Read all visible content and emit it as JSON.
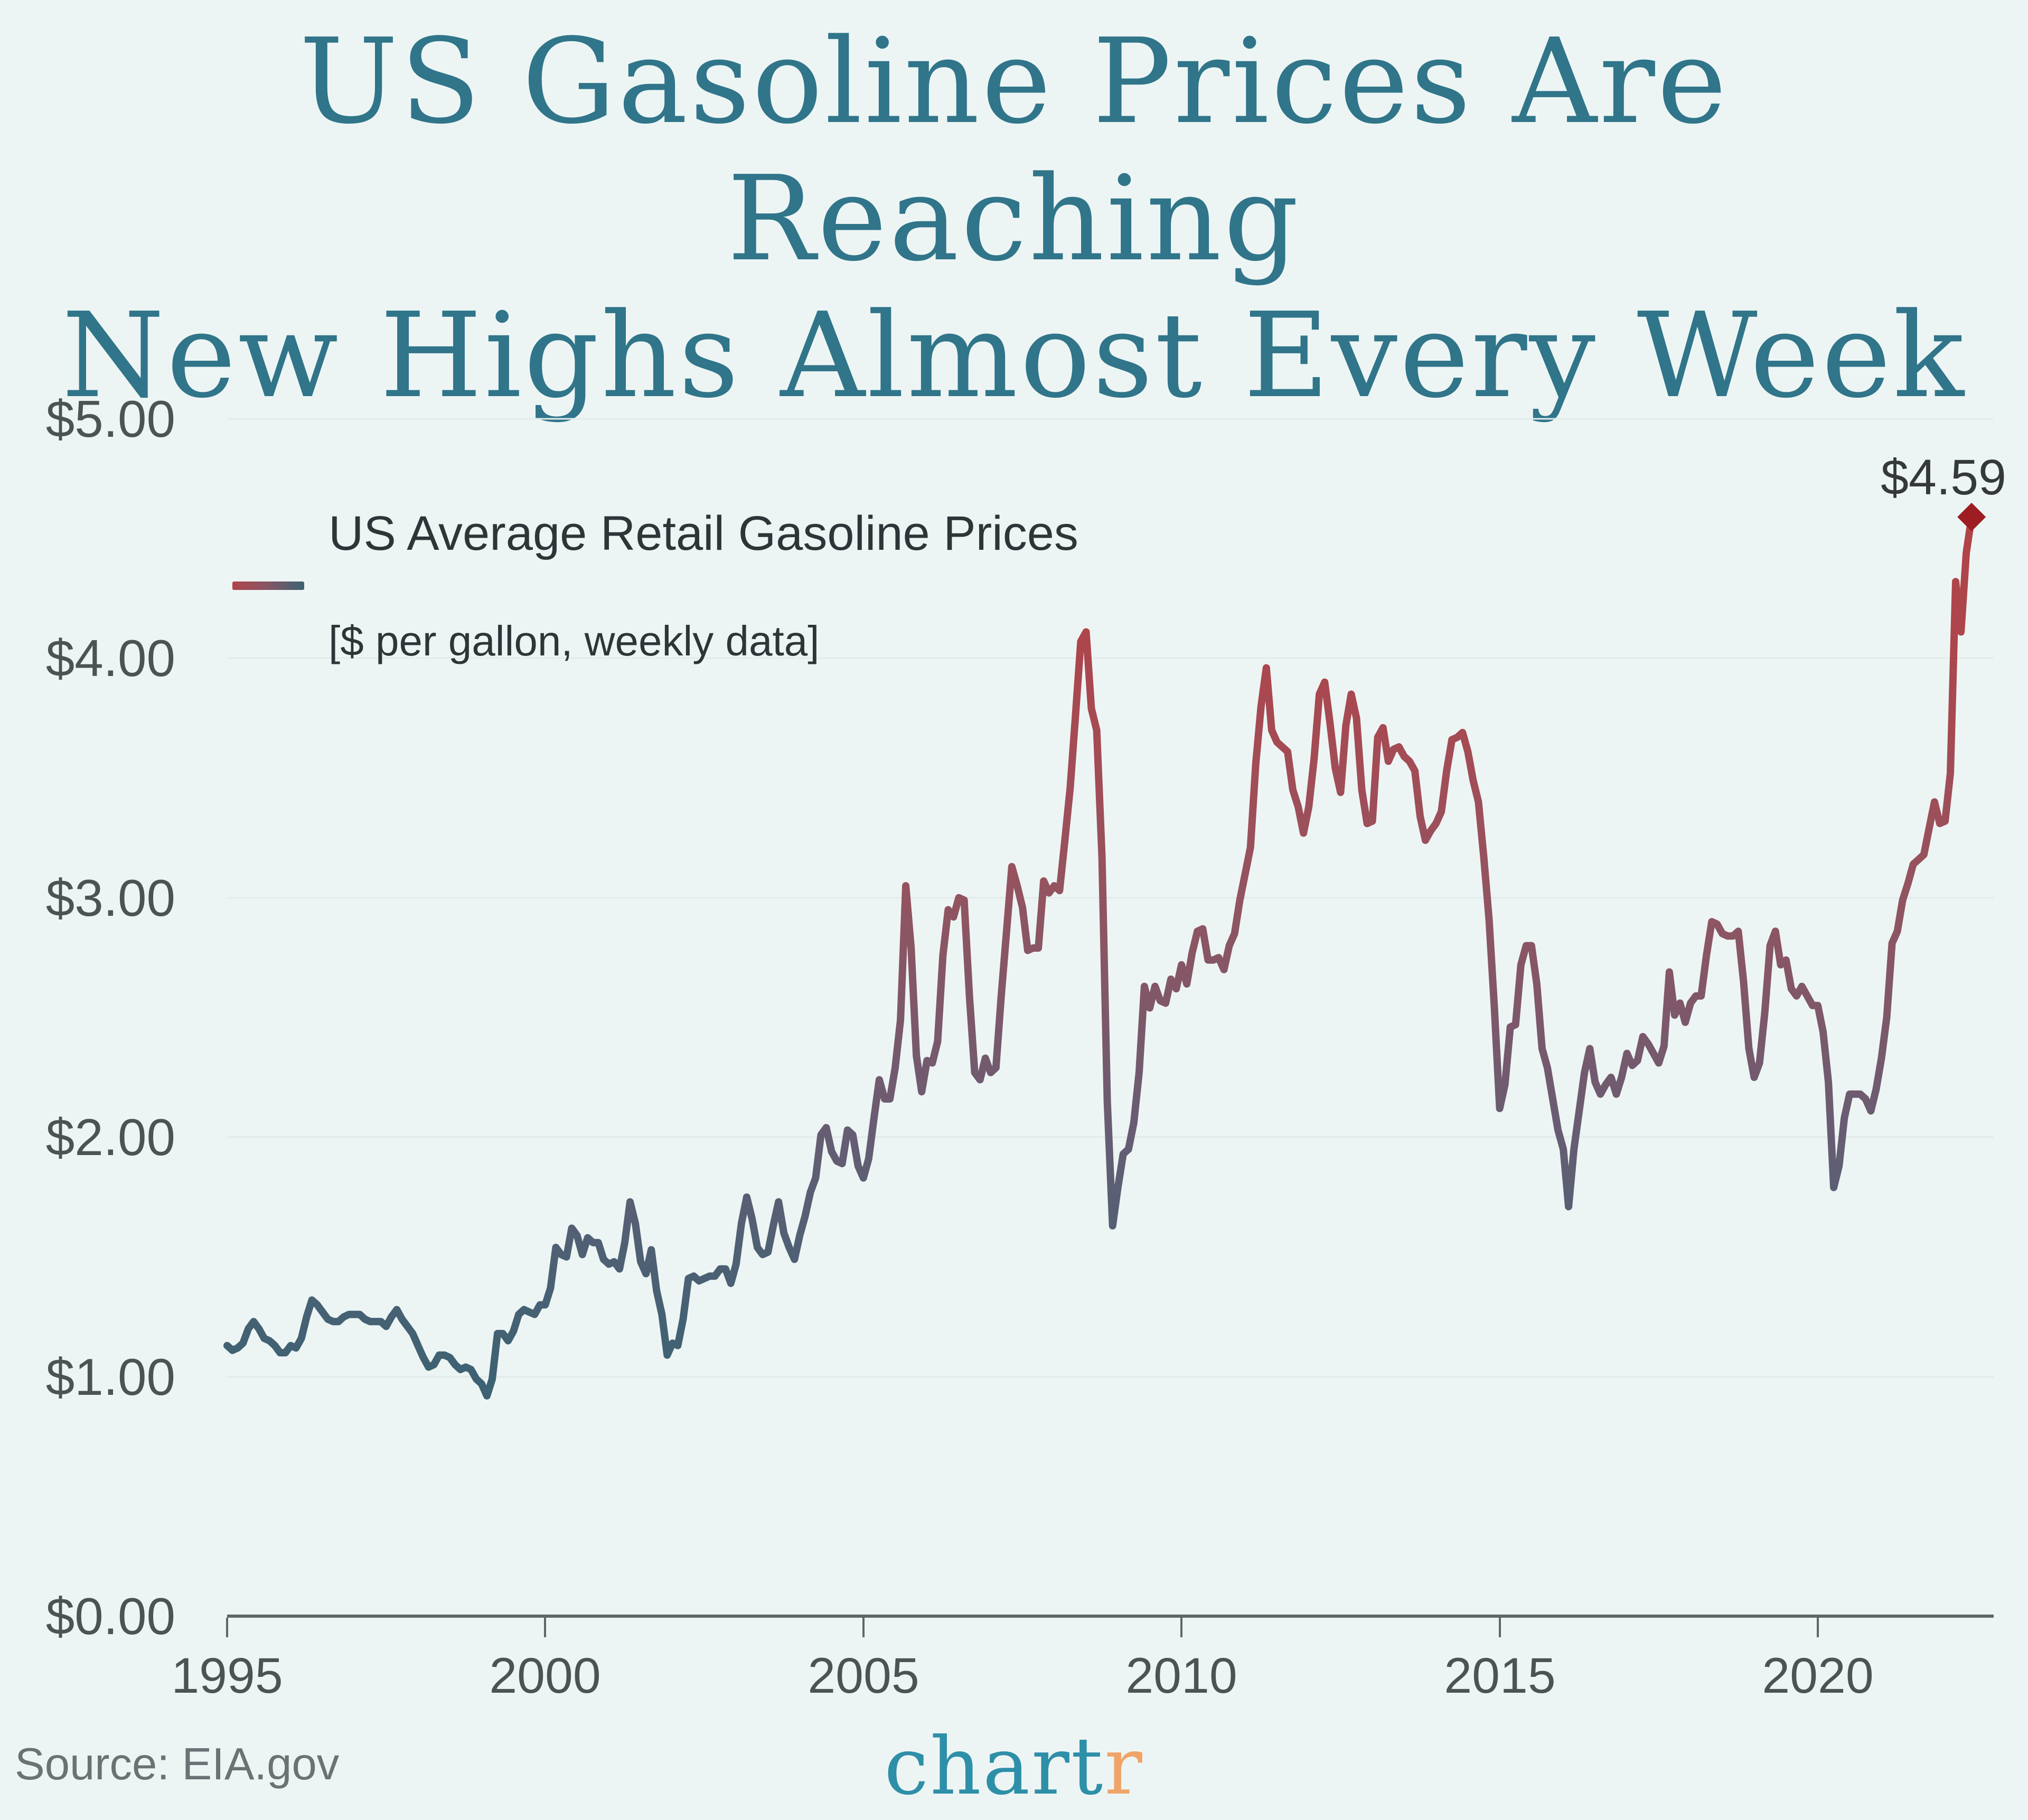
{
  "title": {
    "line1": "US Gasoline Prices Are Reaching",
    "line2": "New Highs Almost Every Week"
  },
  "legend": {
    "label": "US Average Retail Gasoline Prices",
    "sublabel": "[$ per gallon, weekly data]"
  },
  "annotation": {
    "latest_value_label": "$4.59"
  },
  "axes": {
    "y_ticks": [
      "$5.00",
      "$4.00",
      "$3.00",
      "$2.00",
      "$1.00",
      "$0.00"
    ],
    "x_ticks": [
      "1995",
      "2000",
      "2005",
      "2010",
      "2015",
      "2020"
    ]
  },
  "source": {
    "text": "Source: EIA.gov"
  },
  "branding": {
    "logo_teal": "chart",
    "logo_orange": "r"
  },
  "colors": {
    "background": "#edf5f4",
    "title": "#30758a",
    "axis_label": "#4b5355",
    "axis_line": "#5f6568",
    "gridline": "#e2ebe9",
    "legend_text": "#2e3538",
    "source_text": "#6b7174",
    "logo_teal": "#2e8fa8",
    "logo_orange": "#f0a469",
    "end_marker": "#9d1d22",
    "line_gradient": [
      {
        "value": 5.0,
        "color": "#b5424a"
      },
      {
        "value": 4.5,
        "color": "#b04449"
      },
      {
        "value": 4.0,
        "color": "#ac464d"
      },
      {
        "value": 3.5,
        "color": "#a14d57"
      },
      {
        "value": 3.0,
        "color": "#925460"
      },
      {
        "value": 2.5,
        "color": "#7d586a"
      },
      {
        "value": 2.0,
        "color": "#665d73"
      },
      {
        "value": 1.5,
        "color": "#4e6074"
      },
      {
        "value": 1.0,
        "color": "#3d6273"
      },
      {
        "value": 0.5,
        "color": "#386476"
      },
      {
        "value": 0.0,
        "color": "#356577"
      }
    ]
  },
  "chart_data": {
    "type": "line",
    "title": "US Average Retail Gasoline Prices",
    "units": "$ per gallon, weekly data",
    "source": "EIA.gov",
    "x_start_year": 1995,
    "x_step_years": 0.0833333,
    "x_range": [
      1995,
      2022.42
    ],
    "ylim": [
      0,
      5
    ],
    "y_tick_values": [
      0,
      1,
      2,
      3,
      4,
      5
    ],
    "x_tick_values": [
      1995,
      2000,
      2005,
      2010,
      2015,
      2020
    ],
    "grid": "horizontal-only",
    "legend_position": "top-left",
    "color_encoding": "line color maps price: low = slate blue, high = red",
    "latest_point": {
      "x": 2022.42,
      "value": 4.59,
      "label": "$4.59"
    },
    "values": [
      1.13,
      1.11,
      1.12,
      1.14,
      1.2,
      1.23,
      1.2,
      1.16,
      1.15,
      1.13,
      1.1,
      1.1,
      1.13,
      1.12,
      1.16,
      1.25,
      1.32,
      1.3,
      1.27,
      1.24,
      1.23,
      1.23,
      1.25,
      1.26,
      1.26,
      1.26,
      1.24,
      1.23,
      1.23,
      1.23,
      1.21,
      1.25,
      1.28,
      1.24,
      1.21,
      1.18,
      1.13,
      1.08,
      1.04,
      1.05,
      1.09,
      1.09,
      1.08,
      1.05,
      1.03,
      1.04,
      1.03,
      0.99,
      0.97,
      0.92,
      0.99,
      1.18,
      1.18,
      1.15,
      1.19,
      1.26,
      1.28,
      1.27,
      1.26,
      1.3,
      1.3,
      1.37,
      1.54,
      1.51,
      1.5,
      1.62,
      1.59,
      1.51,
      1.58,
      1.56,
      1.56,
      1.49,
      1.47,
      1.48,
      1.45,
      1.56,
      1.73,
      1.64,
      1.48,
      1.43,
      1.53,
      1.36,
      1.26,
      1.09,
      1.14,
      1.13,
      1.24,
      1.41,
      1.42,
      1.4,
      1.41,
      1.42,
      1.42,
      1.45,
      1.45,
      1.39,
      1.47,
      1.64,
      1.75,
      1.66,
      1.54,
      1.51,
      1.52,
      1.63,
      1.73,
      1.6,
      1.54,
      1.49,
      1.59,
      1.67,
      1.77,
      1.83,
      2.01,
      2.04,
      1.94,
      1.9,
      1.89,
      2.03,
      2.01,
      1.88,
      1.83,
      1.91,
      2.08,
      2.24,
      2.16,
      2.16,
      2.29,
      2.49,
      3.05,
      2.79,
      2.34,
      2.19,
      2.32,
      2.31,
      2.4,
      2.76,
      2.95,
      2.92,
      3.0,
      2.99,
      2.59,
      2.27,
      2.24,
      2.33,
      2.27,
      2.29,
      2.59,
      2.86,
      3.13,
      3.05,
      2.96,
      2.78,
      2.79,
      2.79,
      3.07,
      3.02,
      3.05,
      3.03,
      3.24,
      3.46,
      3.76,
      4.07,
      4.11,
      3.79,
      3.7,
      3.17,
      2.15,
      1.63,
      1.79,
      1.93,
      1.95,
      2.06,
      2.27,
      2.63,
      2.54,
      2.63,
      2.57,
      2.56,
      2.66,
      2.62,
      2.72,
      2.64,
      2.77,
      2.86,
      2.87,
      2.74,
      2.74,
      2.75,
      2.7,
      2.8,
      2.85,
      2.99,
      3.1,
      3.21,
      3.56,
      3.8,
      3.96,
      3.7,
      3.65,
      3.63,
      3.61,
      3.45,
      3.38,
      3.27,
      3.38,
      3.58,
      3.85,
      3.9,
      3.73,
      3.54,
      3.44,
      3.72,
      3.85,
      3.75,
      3.45,
      3.31,
      3.32,
      3.67,
      3.71,
      3.57,
      3.62,
      3.63,
      3.59,
      3.57,
      3.53,
      3.34,
      3.24,
      3.28,
      3.31,
      3.36,
      3.53,
      3.66,
      3.67,
      3.69,
      3.61,
      3.49,
      3.4,
      3.17,
      2.91,
      2.54,
      2.12,
      2.22,
      2.46,
      2.47,
      2.72,
      2.8,
      2.8,
      2.64,
      2.37,
      2.29,
      2.16,
      2.03,
      1.95,
      1.71,
      1.95,
      2.11,
      2.27,
      2.37,
      2.23,
      2.18,
      2.22,
      2.25,
      2.18,
      2.25,
      2.35,
      2.3,
      2.32,
      2.42,
      2.39,
      2.35,
      2.31,
      2.38,
      2.69,
      2.51,
      2.56,
      2.48,
      2.56,
      2.59,
      2.59,
      2.76,
      2.9,
      2.89,
      2.85,
      2.84,
      2.84,
      2.86,
      2.65,
      2.37,
      2.25,
      2.31,
      2.52,
      2.8,
      2.86,
      2.72,
      2.74,
      2.62,
      2.59,
      2.63,
      2.59,
      2.55,
      2.55,
      2.44,
      2.23,
      1.79,
      1.88,
      2.08,
      2.18,
      2.18,
      2.18,
      2.16,
      2.11,
      2.2,
      2.33,
      2.5,
      2.81,
      2.86,
      2.99,
      3.06,
      3.14,
      3.16,
      3.18,
      3.29,
      3.4,
      3.31,
      3.32,
      3.52,
      4.32,
      4.11,
      4.44,
      4.59
    ]
  }
}
